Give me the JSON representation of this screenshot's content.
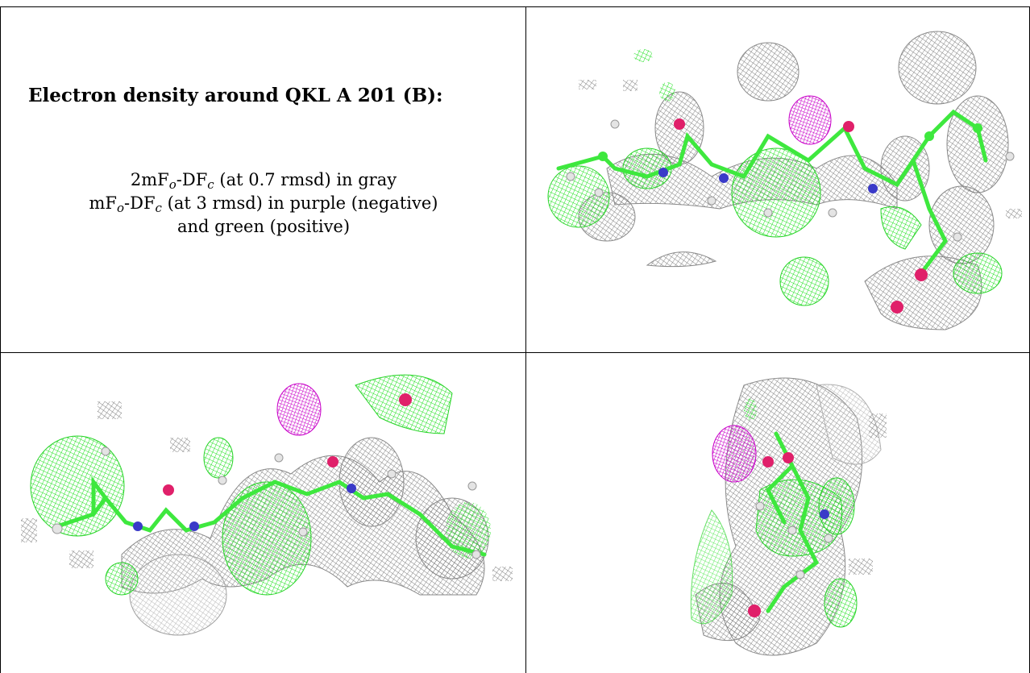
{
  "caption": {
    "title": "Electron density around QKL A 201 (B):",
    "line1": {
      "pre": "2mF",
      "sub1": "o",
      "mid": "-DF",
      "sub2": "c",
      "post": " (at 0.7 rmsd) in gray"
    },
    "line2": {
      "pre": "mF",
      "sub1": "o",
      "mid": "-DF",
      "sub2": "c",
      "post": " (at 3 rmsd) in purple (negative)"
    },
    "line3": "and green (positive)"
  },
  "colors": {
    "gray_mesh": "#7d7d7d",
    "green_mesh": "#22e322",
    "purple_mesh": "#d000d0",
    "carbon": "#3ee83e",
    "nitrogen": "#3a3ac8",
    "oxygen": "#e0206a",
    "hydrogen": "#e4e4e4"
  },
  "panels": {
    "top_right": {
      "name": "density-view-1"
    },
    "bottom_left": {
      "name": "density-view-2"
    },
    "bottom_right": {
      "name": "density-view-3"
    }
  }
}
